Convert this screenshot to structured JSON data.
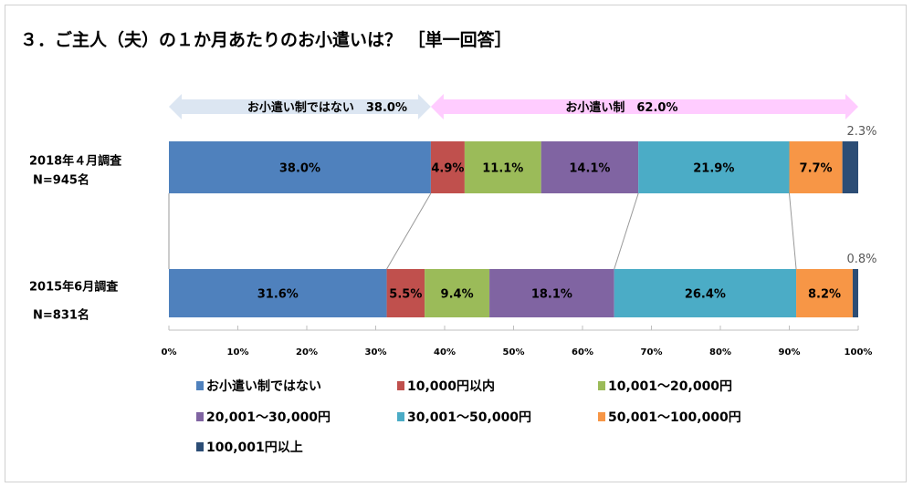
{
  "chart_data": {
    "type": "bar",
    "orientation": "horizontal",
    "stacked": "100%",
    "title": "３．ご主人（夫）の１か月あたりのお小遣いは？ ［単一回答］",
    "categories": [
      {
        "label": "2018年４月調査",
        "n": "N=945名"
      },
      {
        "label": "2015年6月調査",
        "n": "N=831名"
      }
    ],
    "series": [
      {
        "name": "お小遣い制ではない",
        "color": "#4F81BD",
        "values": [
          38.0,
          31.6
        ],
        "labels": [
          "38.0%",
          "31.6%"
        ]
      },
      {
        "name": "10,000円以内",
        "color": "#C0504D",
        "values": [
          4.9,
          5.5
        ],
        "labels": [
          "4.9%",
          "5.5%"
        ]
      },
      {
        "name": "10,001～20,000円",
        "color": "#9BBB59",
        "values": [
          11.1,
          9.4
        ],
        "labels": [
          "11.1%",
          "9.4%"
        ]
      },
      {
        "name": "20,001～30,000円",
        "color": "#8064A2",
        "values": [
          14.1,
          18.1
        ],
        "labels": [
          "14.1%",
          "18.1%"
        ]
      },
      {
        "name": "30,001～50,000円",
        "color": "#4BACC6",
        "values": [
          21.9,
          26.4
        ],
        "labels": [
          "21.9%",
          "26.4%"
        ]
      },
      {
        "name": "50,001～100,000円",
        "color": "#F79646",
        "values": [
          7.7,
          8.2
        ],
        "labels": [
          "7.7%",
          "8.2%"
        ]
      },
      {
        "name": "100,001円以上",
        "color": "#2C4D75",
        "values": [
          2.3,
          0.8
        ],
        "labels": [
          "2.3%",
          "0.8%"
        ]
      }
    ],
    "xlim": [
      0,
      100
    ],
    "xticks": [
      "0%",
      "10%",
      "20%",
      "30%",
      "40%",
      "50%",
      "60%",
      "70%",
      "80%",
      "90%",
      "100%"
    ],
    "legend_position": "bottom",
    "annotations": [
      {
        "text": "お小遣い制ではない　38.0%",
        "from": 0,
        "to": 38.0,
        "color": "#DCE6F2"
      },
      {
        "text": "お小遣い制　62.0%",
        "from": 38.0,
        "to": 100,
        "color": "#FFCCFF"
      }
    ]
  }
}
